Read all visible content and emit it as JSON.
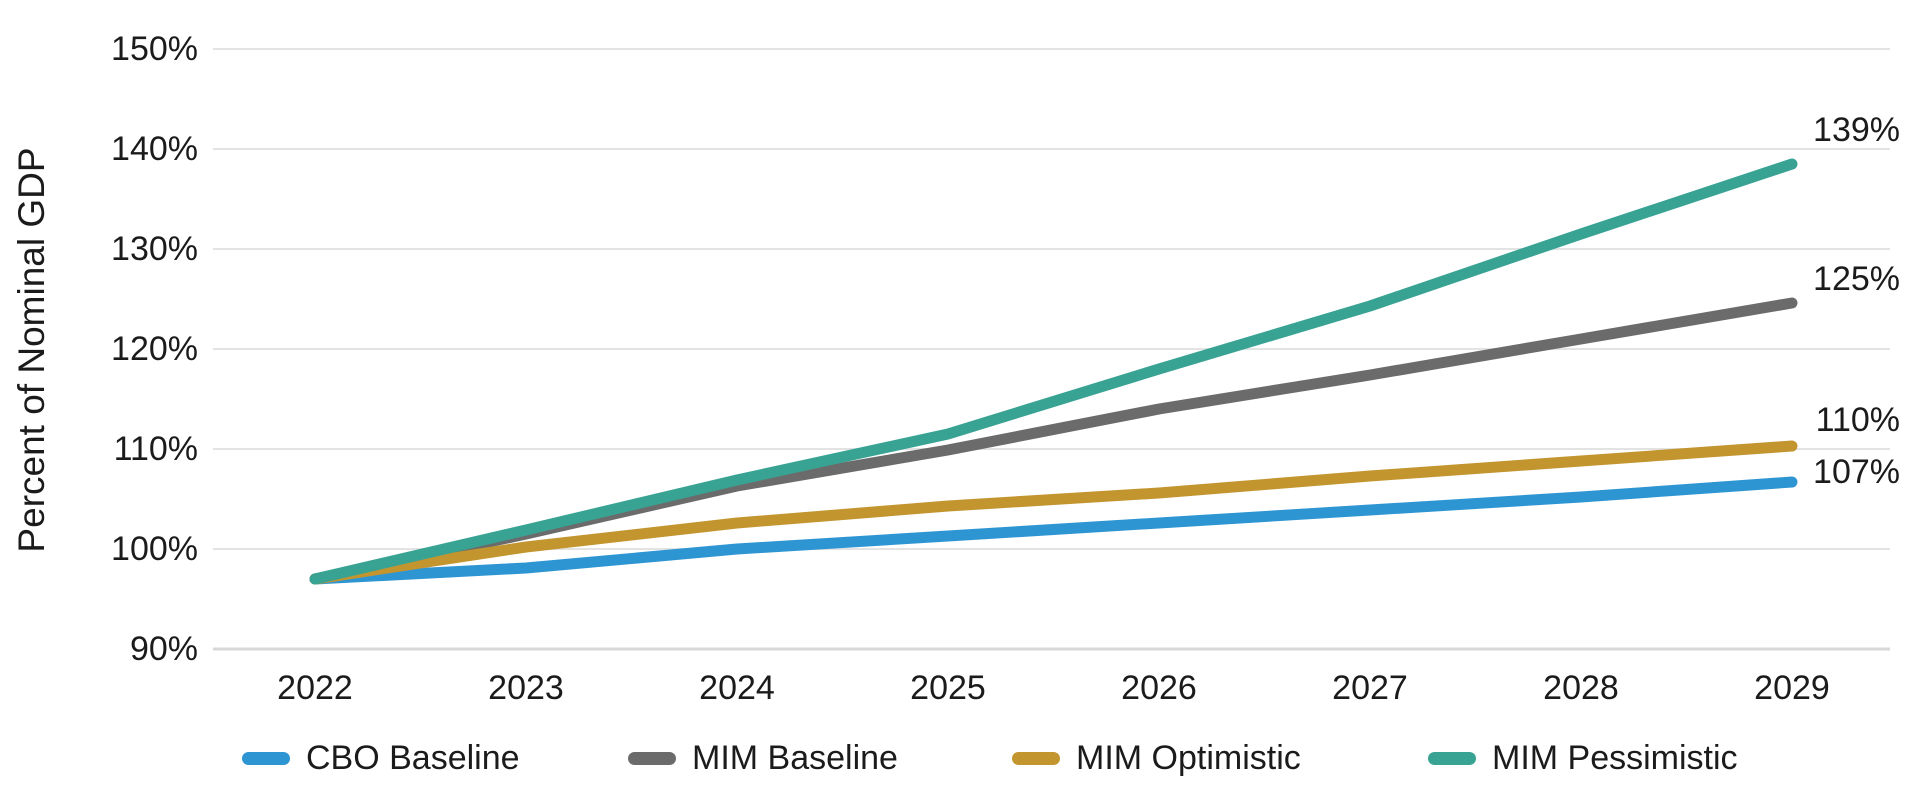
{
  "chart_data": {
    "type": "line",
    "title": "",
    "xlabel": "",
    "ylabel": "Percent of Nominal GDP",
    "categories": [
      "2022",
      "2023",
      "2024",
      "2025",
      "2026",
      "2027",
      "2028",
      "2029"
    ],
    "series": [
      {
        "name": "CBO Baseline",
        "color": "#2E95D3",
        "values": [
          97.0,
          98.1,
          100.0,
          101.3,
          102.6,
          103.9,
          105.2,
          106.7
        ],
        "end_label": "107%"
      },
      {
        "name": "MIM Baseline",
        "color": "#6B6B6B",
        "values": [
          97.0,
          101.5,
          106.3,
          109.9,
          114.0,
          117.4,
          121.0,
          124.6
        ],
        "end_label": "125%"
      },
      {
        "name": "MIM Optimistic",
        "color": "#C2952F",
        "values": [
          97.0,
          100.2,
          102.6,
          104.3,
          105.6,
          107.3,
          108.8,
          110.3
        ],
        "end_label": "110%"
      },
      {
        "name": "MIM Pessimistic",
        "color": "#38A393",
        "values": [
          97.0,
          101.9,
          106.9,
          111.5,
          118.0,
          124.3,
          131.5,
          138.5
        ],
        "end_label": "139%"
      }
    ],
    "ylim": [
      90,
      150
    ],
    "yticks": {
      "values": [
        90,
        100,
        110,
        120,
        130,
        140,
        150
      ],
      "labels": [
        "90%",
        "100%",
        "110%",
        "120%",
        "130%",
        "140%",
        "150%"
      ]
    },
    "grid": true,
    "legend_position": "bottom"
  },
  "colors": {
    "grid": "#E3E3E3",
    "axis": "#D8D8D8",
    "text": "#1B1B1B"
  }
}
